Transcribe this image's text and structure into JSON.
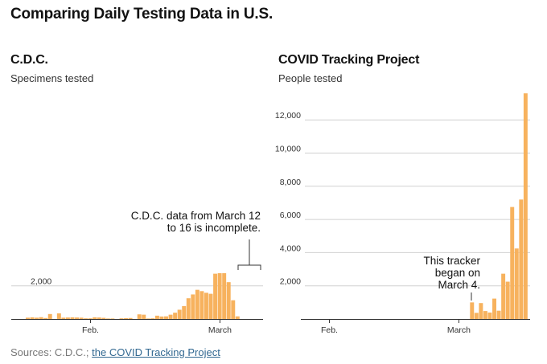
{
  "title": "Comparing Daily Testing Data in U.S.",
  "colors": {
    "bar": "#f7b25e",
    "grid": "#d0d0d0",
    "axis": "#333333"
  },
  "panels": [
    {
      "title": "C.D.C.",
      "subtitle": "Specimens tested"
    },
    {
      "title": "COVID Tracking Project",
      "subtitle": "People tested"
    }
  ],
  "annotations": {
    "cdc_incomplete": [
      "C.D.C. data from March 12",
      "to 16 is incomplete."
    ],
    "tracker_start": [
      "This tracker",
      "began on",
      "March 4."
    ]
  },
  "sources": {
    "prefix": "Sources: C.D.C.; ",
    "link": "the COVID Tracking Project"
  },
  "chart_data": [
    {
      "type": "bar",
      "title": "C.D.C.",
      "subtitle": "Specimens tested",
      "x_start_date": "2020-01-18",
      "ylim": [
        0,
        13800
      ],
      "y_ticks": [
        2000
      ],
      "y_tick_labels": [
        "2,000"
      ],
      "x_ticks": [
        {
          "label": "Feb.",
          "day": 14
        },
        {
          "label": "March",
          "day": 43
        }
      ],
      "values": [
        80,
        100,
        80,
        110,
        60,
        300,
        0,
        340,
        80,
        90,
        100,
        90,
        80,
        40,
        40,
        100,
        90,
        70,
        30,
        30,
        0,
        40,
        50,
        60,
        0,
        280,
        260,
        30,
        40,
        200,
        150,
        160,
        260,
        380,
        560,
        780,
        1250,
        1480,
        1760,
        1680,
        1580,
        1520,
        2730,
        2760,
        2760,
        2220,
        1130,
        160
      ]
    },
    {
      "type": "bar",
      "title": "COVID Tracking Project",
      "subtitle": "People tested",
      "x_start_date": "2020-01-18",
      "ylim": [
        0,
        13800
      ],
      "y_ticks": [
        2000,
        4000,
        6000,
        8000,
        10000,
        12000
      ],
      "y_tick_labels": [
        "2,000",
        "4,000",
        "6,000",
        "8,000",
        "10,000",
        "12,000"
      ],
      "x_ticks": [
        {
          "label": "Feb.",
          "day": 14
        },
        {
          "label": "March",
          "day": 43
        }
      ],
      "values": [
        0,
        0,
        0,
        0,
        0,
        0,
        0,
        0,
        0,
        0,
        0,
        0,
        0,
        0,
        0,
        0,
        0,
        0,
        0,
        0,
        0,
        0,
        0,
        0,
        0,
        0,
        0,
        0,
        0,
        0,
        0,
        0,
        0,
        0,
        0,
        0,
        0,
        0,
        0,
        0,
        0,
        0,
        0,
        0,
        0,
        0,
        1000,
        370,
        960,
        480,
        390,
        1230,
        500,
        2730,
        2250,
        6750,
        4250,
        7200,
        13600
      ]
    }
  ]
}
